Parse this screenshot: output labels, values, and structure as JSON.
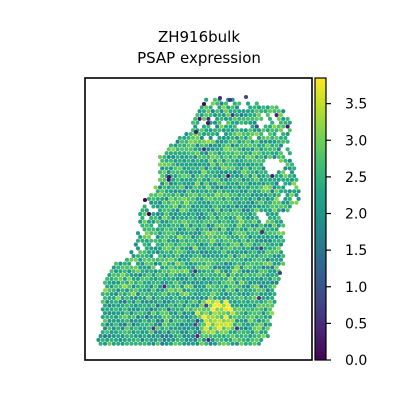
{
  "chart_data": {
    "type": "scatter",
    "title_lines": [
      "ZH916bulk",
      "PSAP expression"
    ],
    "xlabel": "",
    "ylabel": "",
    "colorbar": {
      "colormap": "viridis",
      "vmin": 0.0,
      "vmax": 3.85,
      "ticks": [
        0.0,
        0.5,
        1.0,
        1.5,
        2.0,
        2.5,
        3.0,
        3.5
      ],
      "tick_labels": [
        "0.0",
        "0.5",
        "1.0",
        "1.5",
        "2.0",
        "2.5",
        "3.0",
        "3.5"
      ]
    },
    "value_summary": {
      "typical_range": [
        2.0,
        3.2
      ],
      "max_approx": 3.8,
      "min_approx": 0.0
    },
    "axis_ticks_visible": false,
    "grid": false
  }
}
